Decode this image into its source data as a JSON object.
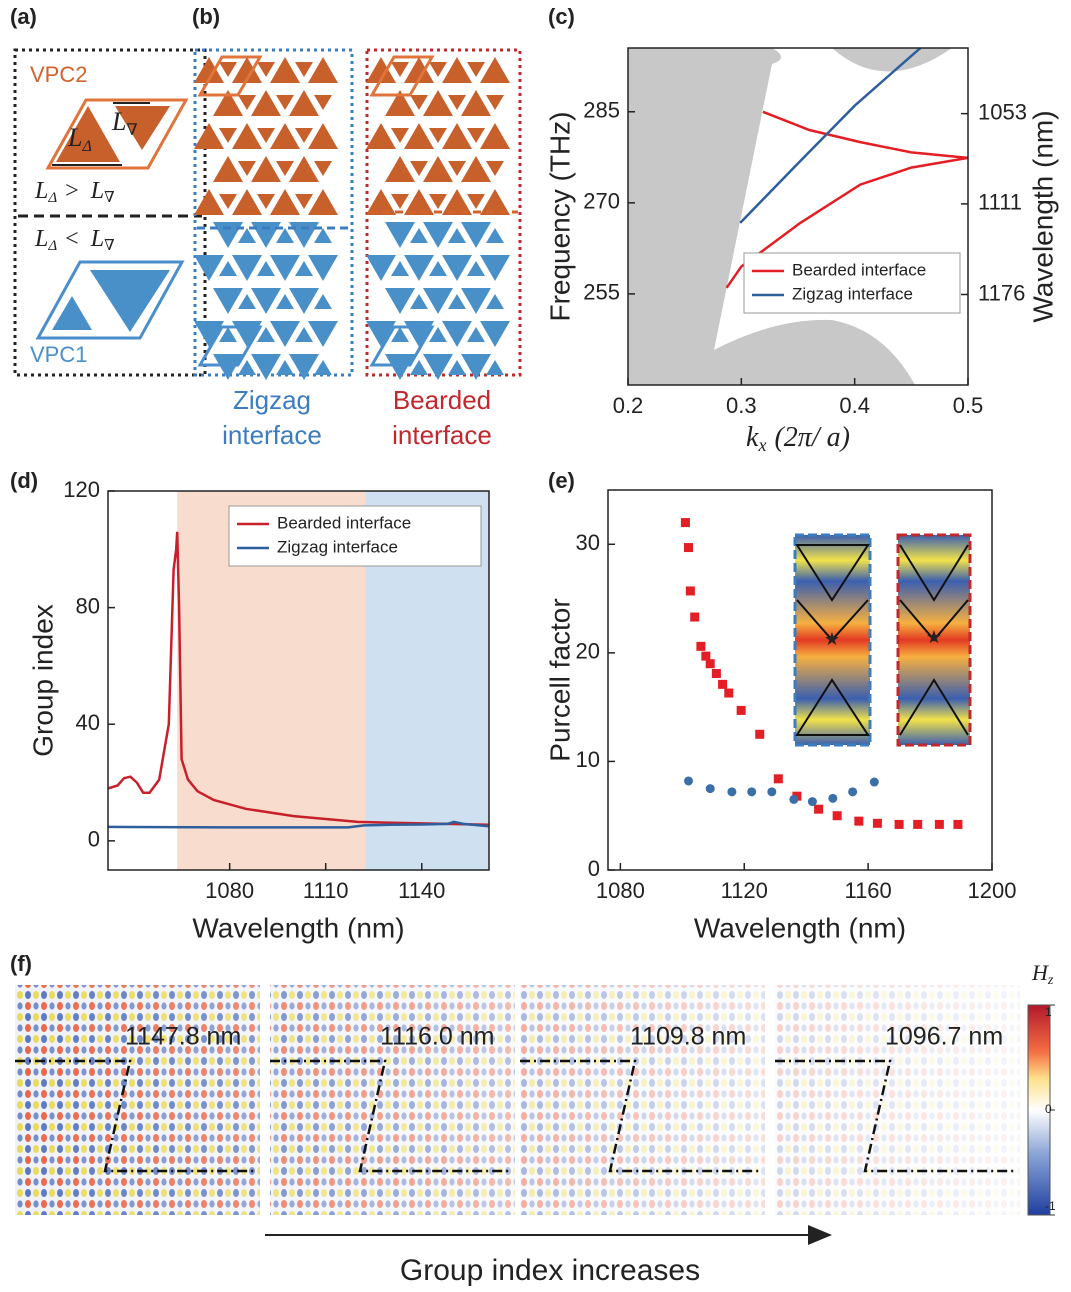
{
  "panel_labels": [
    "(a)",
    "(b)",
    "(c)",
    "(d)",
    "(e)",
    "(f)"
  ],
  "panel_a": {
    "top_label": "VPC2",
    "bottom_label": "VPC1",
    "len_up": [
      "L",
      "Δ"
    ],
    "len_down": [
      "L",
      "∇"
    ],
    "relation_top": [
      "L",
      "Δ",
      ">",
      "L",
      "∇"
    ],
    "relation_bottom": [
      "L",
      "Δ",
      "<",
      "L",
      "∇"
    ]
  },
  "panel_b": {
    "zigzag_label": [
      "Zigzag",
      "interface"
    ],
    "bearded_label": [
      "Bearded",
      "interface"
    ]
  },
  "chart_data": [
    {
      "type": "line",
      "xlabel": [
        "k",
        "x",
        "(2π/ a)"
      ],
      "ylabel": "Frequency (THz)",
      "y2label": "Wavelength (nm)",
      "xlim": [
        0.2,
        0.5
      ],
      "xticks": [
        0.2,
        0.3,
        0.4,
        0.5
      ],
      "ylim": [
        240,
        295.5
      ],
      "yticks": [
        255,
        270,
        285
      ],
      "y2lim": [
        1249,
        1014.5
      ],
      "y2scale": "reciprocal",
      "y2ticks": [
        1053,
        1111,
        1176
      ],
      "legend": "lower right",
      "series": [
        {
          "name": "Bearded interface",
          "color": "#e31e24",
          "x": [
            0.319,
            0.36,
            0.405,
            0.45,
            0.5,
            0.5,
            0.5,
            0.45,
            0.405,
            0.352,
            0.3,
            0.287
          ],
          "values": [
            285,
            282,
            280,
            278.3,
            277.4,
            null,
            277.4,
            275.8,
            273,
            266.7,
            259.5,
            256
          ]
        },
        {
          "name": "Zigzag interface",
          "color": "#2e5f9c",
          "x": [
            0.299,
            0.35,
            0.4,
            0.45,
            0.458
          ],
          "values": [
            266.7,
            276.5,
            286,
            294.2,
            295.5
          ]
        }
      ]
    },
    {
      "type": "line",
      "xlabel": "Wavelength (nm)",
      "ylabel": "Group index",
      "xlim": [
        1042,
        1161
      ],
      "xticks": [
        1080,
        1110,
        1140
      ],
      "ylim": [
        -10,
        120
      ],
      "yticks": [
        0,
        40,
        80,
        120
      ],
      "shaded_spans": [
        {
          "xlim": [
            1063.6,
            1122.3
          ],
          "color": "#f8ddce"
        },
        {
          "xlim": [
            1122.3,
            1161
          ],
          "color": "#cfe1f0"
        }
      ],
      "legend": "upper right",
      "series": [
        {
          "name": "Bearded interface",
          "color": "#c8202a",
          "x": [
            1042,
            1045,
            1047,
            1049,
            1051,
            1053,
            1055,
            1058,
            1061,
            1062.5,
            1063.3,
            1063.6,
            1064.2,
            1065,
            1067,
            1070,
            1075,
            1085,
            1100,
            1120,
            1140,
            1161
          ],
          "values": [
            18,
            19,
            21.5,
            22,
            20,
            16.5,
            16.5,
            21,
            40,
            93,
            100,
            106,
            80,
            28,
            21,
            17,
            14,
            11,
            8.5,
            6.5,
            6,
            5.5
          ]
        },
        {
          "name": "Zigzag interface",
          "color": "#2e5f9c",
          "x": [
            1042,
            1080,
            1100,
            1117,
            1122,
            1130,
            1140,
            1148,
            1150,
            1153,
            1161
          ],
          "values": [
            4.8,
            4.6,
            4.6,
            4.6,
            5.3,
            5.5,
            5.6,
            5.8,
            6.5,
            5.8,
            5
          ]
        }
      ]
    },
    {
      "type": "scatter",
      "xlabel": "Wavelength (nm)",
      "ylabel": "Purcell factor",
      "xlim": [
        1076,
        1200
      ],
      "xticks": [
        1080,
        1120,
        1160,
        1200
      ],
      "ylim": [
        0,
        35
      ],
      "yticks": [
        0,
        10,
        20,
        30
      ],
      "series": [
        {
          "color": "#e31e24",
          "marker": "square",
          "x": [
            1101,
            1102,
            1102.6,
            1104,
            1106,
            1107.6,
            1109,
            1111,
            1113,
            1115,
            1119,
            1125,
            1131,
            1137,
            1144,
            1150,
            1157,
            1163,
            1170,
            1176,
            1183,
            1189
          ],
          "values": [
            32,
            29.7,
            25.7,
            23.3,
            20.6,
            19.7,
            19,
            18.1,
            17.1,
            16.3,
            14.7,
            12.5,
            8.4,
            6.8,
            5.6,
            5,
            4.5,
            4.3,
            4.2,
            4.2,
            4.2,
            4.2
          ]
        },
        {
          "color": "#3a6fa8",
          "marker": "circle",
          "x": [
            1102,
            1109,
            1116,
            1122.4,
            1128.9,
            1136,
            1142,
            1148.6,
            1155,
            1162
          ],
          "values": [
            8.2,
            7.5,
            7.2,
            7.2,
            7.2,
            6.5,
            6.3,
            6.6,
            7.2,
            8.1
          ]
        }
      ]
    }
  ],
  "panel_f": {
    "maps": [
      {
        "label": "1147.8 nm"
      },
      {
        "label": "1116.0 nm"
      },
      {
        "label": "1109.8 nm"
      },
      {
        "label": "1096.7 nm"
      }
    ],
    "colorbar": {
      "label": [
        "H",
        "z"
      ],
      "lim": [
        -1,
        1
      ],
      "ticks": [
        1,
        0,
        -1
      ]
    },
    "arrow_label": "Group index increases"
  }
}
